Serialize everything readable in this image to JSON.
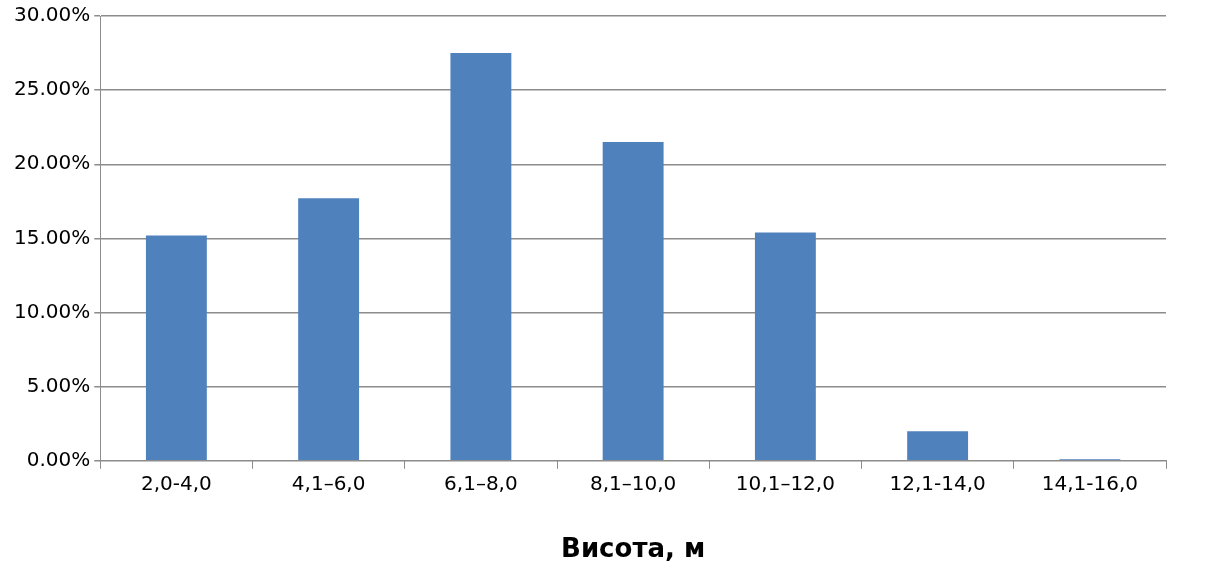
{
  "chart_data": {
    "type": "bar",
    "xlabel": "Висота, м",
    "categories": [
      "2,0-4,0",
      "4,1–6,0",
      "6,1–8,0",
      "8,1–10,0",
      "10,1–12,0",
      "12,1-14,0",
      "14,1-16,0"
    ],
    "values": [
      15.2,
      17.7,
      27.5,
      21.5,
      15.4,
      2.0,
      0.1
    ],
    "color": "#4f81bd",
    "ylim": [
      0,
      30
    ],
    "yticks": [
      {
        "value": 0,
        "label": "0.00%"
      },
      {
        "value": 5,
        "label": "5.00%"
      },
      {
        "value": 10,
        "label": "10.00%"
      },
      {
        "value": 15,
        "label": "15.00%"
      },
      {
        "value": 20,
        "label": "20.00%"
      },
      {
        "value": 25,
        "label": "25.00%"
      },
      {
        "value": 30,
        "label": "30.00%"
      }
    ],
    "grid": "y",
    "legend": false
  }
}
